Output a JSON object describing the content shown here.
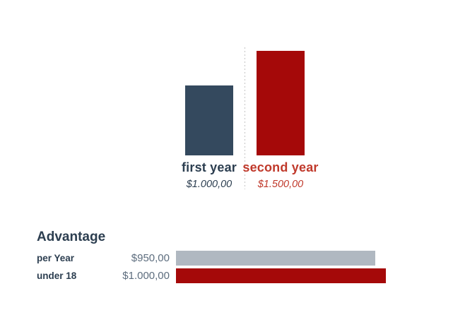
{
  "page": {
    "background": "#ffffff"
  },
  "chart_data": [
    {
      "type": "bar",
      "orientation": "vertical",
      "categories": [
        "first year",
        "second year"
      ],
      "values": [
        1000,
        1500
      ],
      "value_labels": [
        "$1.000,00",
        "$1.500,00"
      ],
      "bar_colors": [
        "#34495e",
        "#a50909"
      ],
      "label_colors": [
        "#2c3e50",
        "#c0392b"
      ],
      "ylim": [
        0,
        1500
      ],
      "legend": "none",
      "grid": "off",
      "separator": {
        "style": "dashed-vertical-line",
        "color": "#c4c4c4"
      }
    },
    {
      "type": "bar",
      "orientation": "horizontal",
      "title": "Advantage",
      "categories": [
        "per Year",
        "under 18"
      ],
      "values": [
        950,
        1000
      ],
      "value_labels": [
        "$950,00",
        "$1.000,00"
      ],
      "bar_colors": [
        "#b0b8c1",
        "#a50909"
      ],
      "xlim": [
        0,
        1000
      ],
      "legend": "none",
      "grid": "off",
      "title_color": "#2c3e50",
      "label_color": "#2c3e50",
      "value_color": "#5d6d7e"
    }
  ]
}
